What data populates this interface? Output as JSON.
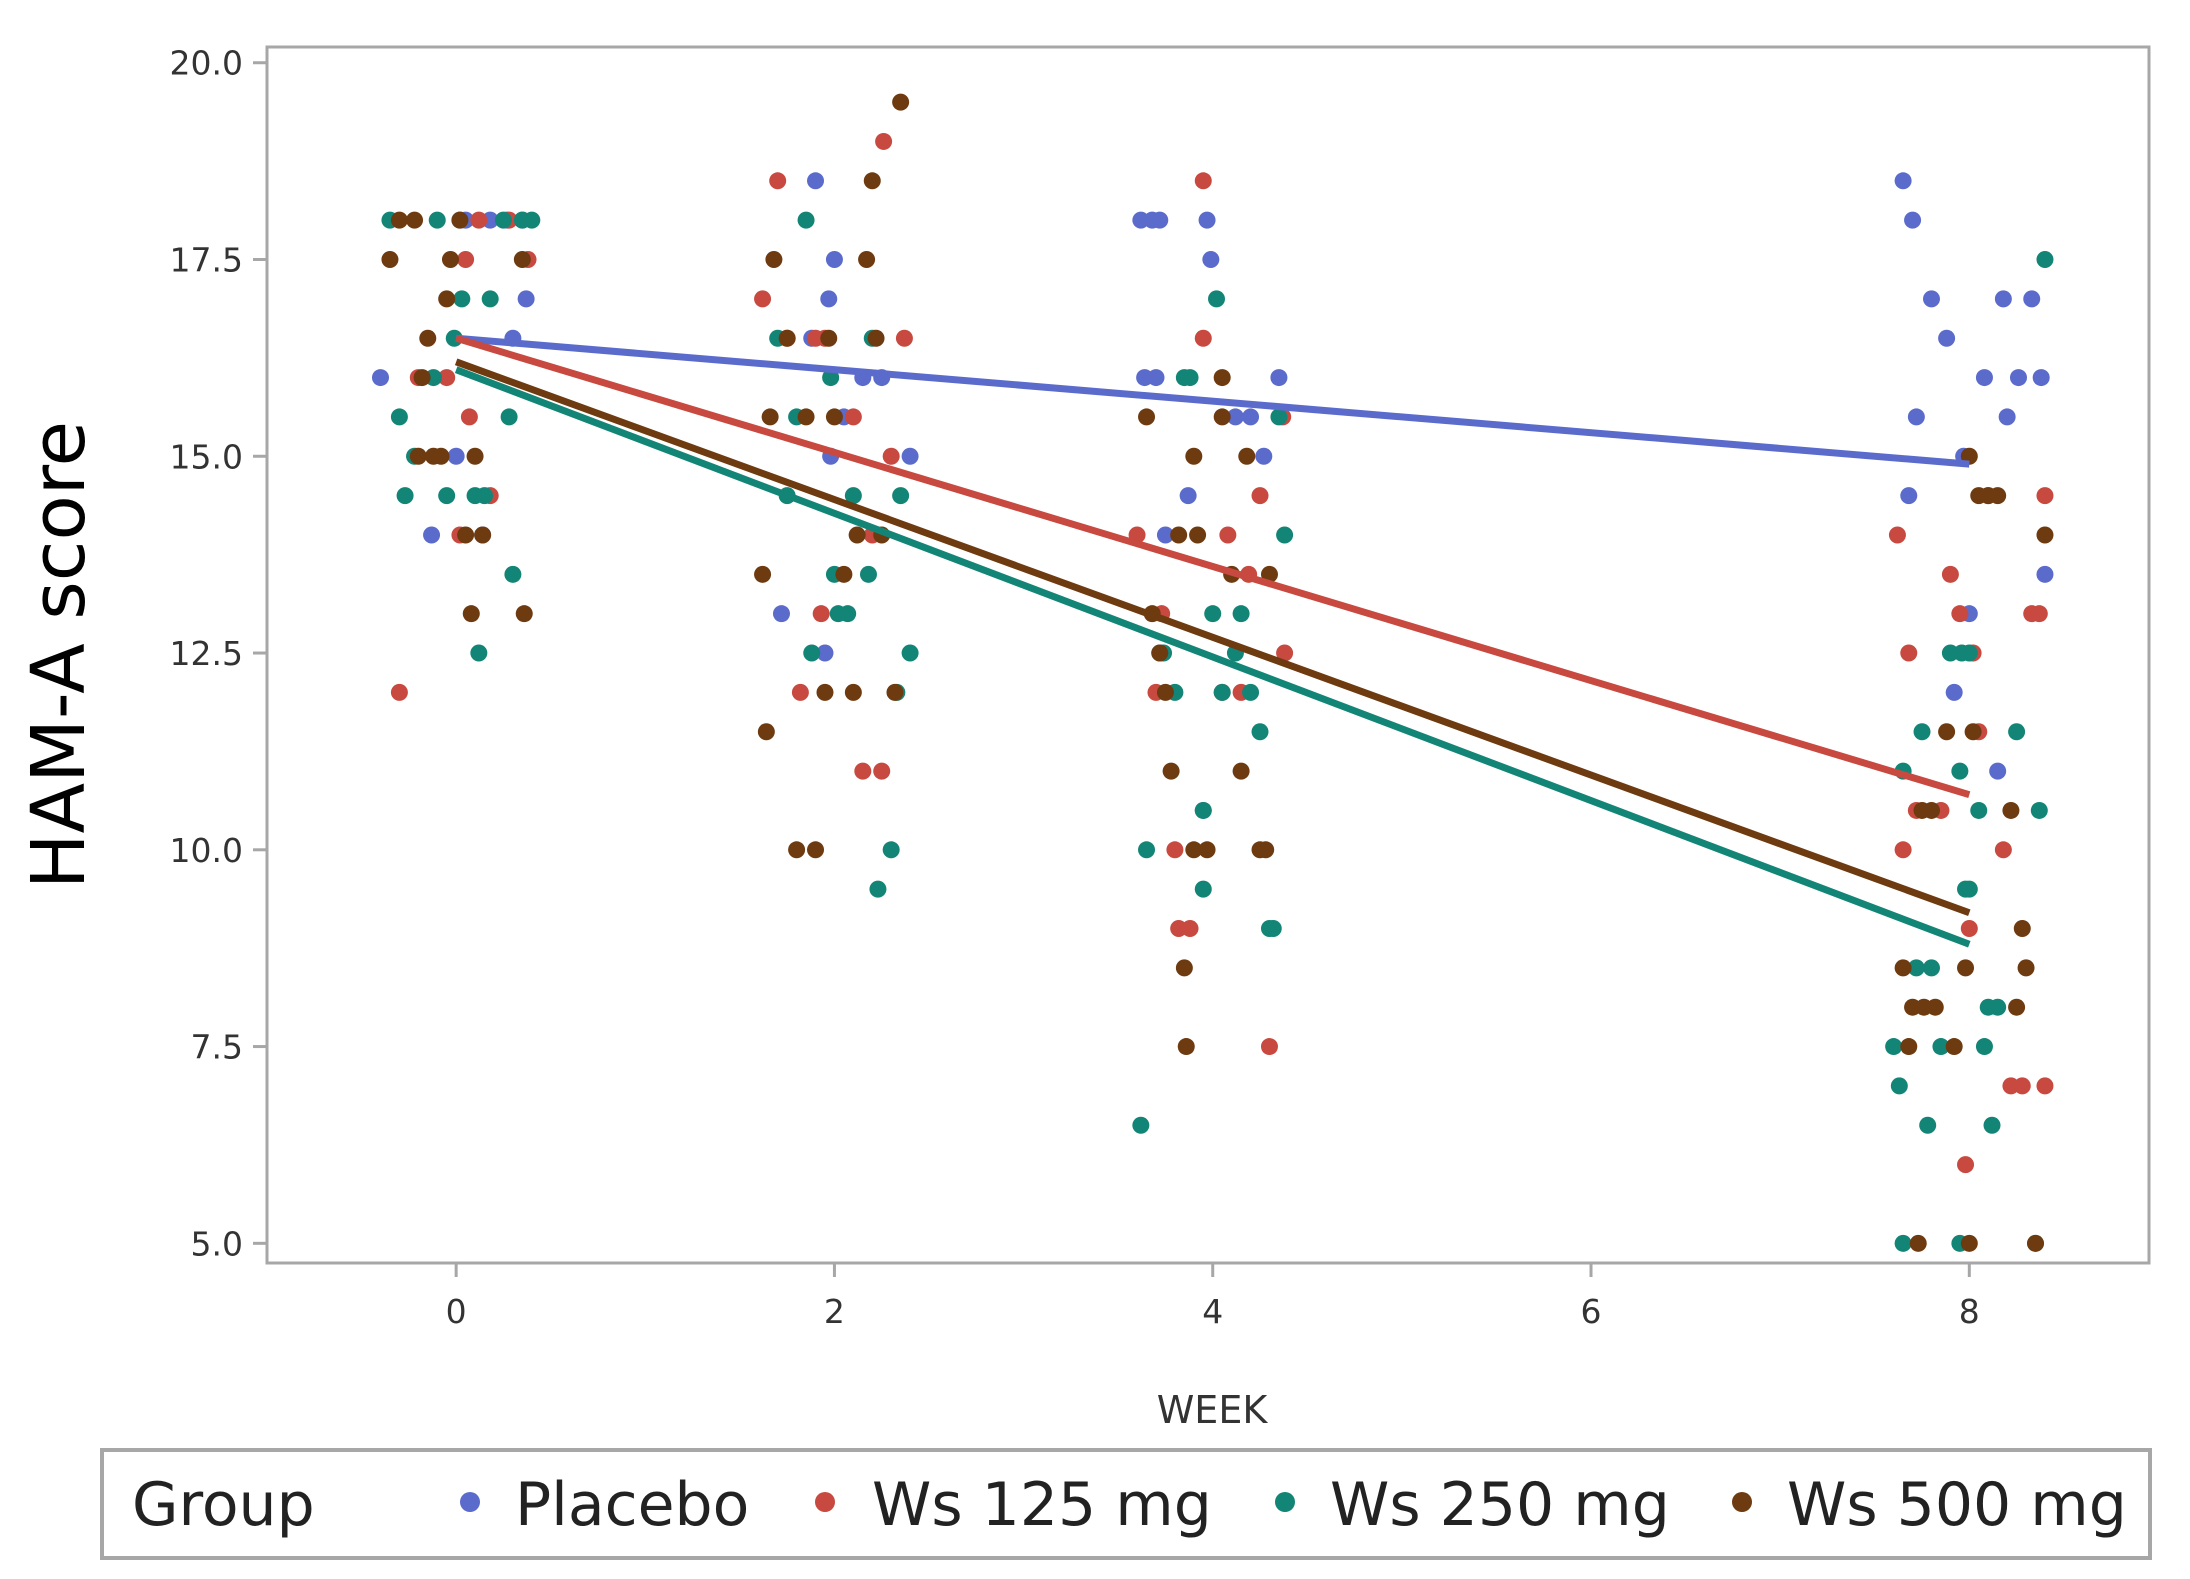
{
  "chart_data": {
    "type": "scatter",
    "xlabel": "WEEK",
    "ylabel": "HAM-A  score",
    "xlim": [
      -1,
      8.95
    ],
    "ylim": [
      4.75,
      20.2
    ],
    "xticks": [
      0,
      2,
      4,
      6,
      8
    ],
    "xtick_labels": [
      "0",
      "2",
      "4",
      "6",
      "8"
    ],
    "yticks": [
      5.0,
      7.5,
      10.0,
      12.5,
      15.0,
      17.5,
      20.0
    ],
    "ytick_labels": [
      "5.0",
      "7.5",
      "10.0",
      "12.5",
      "15.0",
      "17.5",
      "20.0"
    ],
    "grid": false,
    "legend": {
      "title": "Group",
      "placement": "bottom",
      "entries": [
        "Placebo",
        "Ws 125 mg",
        "Ws 250 mg",
        "Ws 500 mg"
      ]
    },
    "series": [
      {
        "name": "Placebo",
        "color": "#5b6bcb",
        "trend": [
          [
            0,
            16.5
          ],
          [
            8,
            14.9
          ]
        ],
        "points": [
          [
            -0.4,
            16.0
          ],
          [
            -0.13,
            14.0
          ],
          [
            0.0,
            15.0
          ],
          [
            0.02,
            18.0
          ],
          [
            0.05,
            18.0
          ],
          [
            0.14,
            14.0
          ],
          [
            0.3,
            16.5
          ],
          [
            0.37,
            17.0
          ],
          [
            0.35,
            18.0
          ],
          [
            0.27,
            18.0
          ],
          [
            0.18,
            18.0
          ],
          [
            1.9,
            18.5
          ],
          [
            1.72,
            13.0
          ],
          [
            1.88,
            16.5
          ],
          [
            1.95,
            12.5
          ],
          [
            1.98,
            15.0
          ],
          [
            1.97,
            17.0
          ],
          [
            2.0,
            17.5
          ],
          [
            2.05,
            15.5
          ],
          [
            2.15,
            16.0
          ],
          [
            2.25,
            16.0
          ],
          [
            2.4,
            15.0
          ],
          [
            3.62,
            18.0
          ],
          [
            3.68,
            18.0
          ],
          [
            3.72,
            18.0
          ],
          [
            3.7,
            16.0
          ],
          [
            3.64,
            16.0
          ],
          [
            3.75,
            14.0
          ],
          [
            3.87,
            14.5
          ],
          [
            3.97,
            18.0
          ],
          [
            3.99,
            17.5
          ],
          [
            3.95,
            10.5
          ],
          [
            4.12,
            15.5
          ],
          [
            4.2,
            15.5
          ],
          [
            4.27,
            15.0
          ],
          [
            4.35,
            16.0
          ],
          [
            7.65,
            18.5
          ],
          [
            7.7,
            18.0
          ],
          [
            7.68,
            14.5
          ],
          [
            7.72,
            15.5
          ],
          [
            7.8,
            17.0
          ],
          [
            7.88,
            16.5
          ],
          [
            7.92,
            12.0
          ],
          [
            7.97,
            15.0
          ],
          [
            8.0,
            13.0
          ],
          [
            8.08,
            16.0
          ],
          [
            8.15,
            11.0
          ],
          [
            8.2,
            15.5
          ],
          [
            8.26,
            16.0
          ],
          [
            8.18,
            17.0
          ],
          [
            8.33,
            17.0
          ],
          [
            8.38,
            16.0
          ],
          [
            8.4,
            13.5
          ]
        ]
      },
      {
        "name": "Ws 125 mg",
        "color": "#c8493f",
        "trend": [
          [
            0,
            16.5
          ],
          [
            8,
            10.7
          ]
        ],
        "points": [
          [
            -0.3,
            12.0
          ],
          [
            -0.2,
            16.0
          ],
          [
            -0.05,
            16.0
          ],
          [
            0.02,
            14.0
          ],
          [
            0.05,
            17.5
          ],
          [
            0.07,
            15.5
          ],
          [
            0.12,
            18.0
          ],
          [
            0.18,
            14.5
          ],
          [
            0.28,
            18.0
          ],
          [
            0.38,
            17.5
          ],
          [
            1.62,
            17.0
          ],
          [
            1.7,
            18.5
          ],
          [
            1.75,
            16.5
          ],
          [
            1.82,
            12.0
          ],
          [
            1.9,
            16.5
          ],
          [
            1.93,
            13.0
          ],
          [
            1.95,
            16.5
          ],
          [
            2.1,
            15.5
          ],
          [
            2.15,
            11.0
          ],
          [
            2.2,
            14.0
          ],
          [
            2.26,
            19.0
          ],
          [
            2.3,
            15.0
          ],
          [
            2.37,
            16.5
          ],
          [
            2.25,
            11.0
          ],
          [
            3.6,
            14.0
          ],
          [
            3.7,
            12.0
          ],
          [
            3.73,
            13.0
          ],
          [
            3.8,
            10.0
          ],
          [
            3.82,
            9.0
          ],
          [
            3.88,
            9.0
          ],
          [
            3.95,
            18.5
          ],
          [
            3.95,
            16.5
          ],
          [
            4.05,
            12.0
          ],
          [
            4.08,
            14.0
          ],
          [
            4.15,
            12.0
          ],
          [
            4.19,
            13.5
          ],
          [
            4.25,
            14.5
          ],
          [
            4.3,
            7.5
          ],
          [
            4.37,
            15.5
          ],
          [
            4.38,
            12.5
          ],
          [
            7.62,
            14.0
          ],
          [
            7.65,
            10.0
          ],
          [
            7.68,
            12.5
          ],
          [
            7.72,
            10.5
          ],
          [
            7.85,
            10.5
          ],
          [
            7.9,
            13.5
          ],
          [
            7.95,
            13.0
          ],
          [
            8.0,
            9.0
          ],
          [
            8.02,
            12.5
          ],
          [
            7.98,
            6.0
          ],
          [
            8.05,
            11.5
          ],
          [
            8.1,
            14.5
          ],
          [
            8.18,
            10.0
          ],
          [
            8.22,
            7.0
          ],
          [
            8.28,
            7.0
          ],
          [
            8.33,
            13.0
          ],
          [
            8.37,
            13.0
          ],
          [
            8.4,
            14.5
          ],
          [
            8.4,
            7.0
          ]
        ]
      },
      {
        "name": "Ws 250 mg",
        "color": "#138576",
        "trend": [
          [
            0,
            16.1
          ],
          [
            8,
            8.8
          ]
        ],
        "points": [
          [
            -0.35,
            18.0
          ],
          [
            -0.3,
            15.5
          ],
          [
            -0.27,
            14.5
          ],
          [
            -0.22,
            15.0
          ],
          [
            -0.12,
            16.0
          ],
          [
            -0.1,
            18.0
          ],
          [
            -0.05,
            14.5
          ],
          [
            -0.01,
            16.5
          ],
          [
            0.03,
            17.0
          ],
          [
            0.1,
            14.5
          ],
          [
            0.12,
            12.5
          ],
          [
            0.15,
            14.5
          ],
          [
            0.18,
            17.0
          ],
          [
            0.25,
            18.0
          ],
          [
            0.28,
            15.5
          ],
          [
            0.3,
            13.5
          ],
          [
            0.35,
            18.0
          ],
          [
            0.4,
            18.0
          ],
          [
            1.7,
            16.5
          ],
          [
            1.75,
            14.5
          ],
          [
            1.8,
            15.5
          ],
          [
            1.85,
            18.0
          ],
          [
            1.88,
            12.5
          ],
          [
            2.0,
            13.5
          ],
          [
            2.02,
            13.0
          ],
          [
            2.07,
            13.0
          ],
          [
            2.1,
            14.5
          ],
          [
            2.18,
            13.5
          ],
          [
            2.23,
            9.5
          ],
          [
            2.3,
            10.0
          ],
          [
            2.35,
            14.5
          ],
          [
            2.33,
            12.0
          ],
          [
            2.4,
            12.5
          ],
          [
            2.2,
            16.5
          ],
          [
            1.98,
            16.0
          ],
          [
            3.62,
            6.5
          ],
          [
            3.65,
            10.0
          ],
          [
            3.72,
            12.5
          ],
          [
            3.74,
            12.5
          ],
          [
            3.8,
            12.0
          ],
          [
            3.85,
            16.0
          ],
          [
            3.88,
            16.0
          ],
          [
            3.95,
            9.5
          ],
          [
            3.95,
            10.5
          ],
          [
            4.0,
            13.0
          ],
          [
            4.05,
            12.0
          ],
          [
            4.12,
            12.5
          ],
          [
            4.15,
            13.0
          ],
          [
            4.2,
            12.0
          ],
          [
            4.25,
            11.5
          ],
          [
            4.3,
            9.0
          ],
          [
            4.32,
            9.0
          ],
          [
            4.38,
            14.0
          ],
          [
            4.35,
            15.5
          ],
          [
            4.02,
            17.0
          ],
          [
            7.6,
            7.5
          ],
          [
            7.63,
            7.0
          ],
          [
            7.65,
            11.0
          ],
          [
            7.72,
            8.5
          ],
          [
            7.75,
            11.5
          ],
          [
            7.78,
            6.5
          ],
          [
            7.8,
            8.5
          ],
          [
            7.85,
            7.5
          ],
          [
            7.9,
            12.5
          ],
          [
            7.95,
            11.0
          ],
          [
            7.96,
            12.5
          ],
          [
            7.98,
            9.5
          ],
          [
            8.0,
            12.5
          ],
          [
            8.05,
            10.5
          ],
          [
            8.08,
            7.5
          ],
          [
            8.1,
            8.0
          ],
          [
            8.12,
            6.5
          ],
          [
            8.15,
            8.0
          ],
          [
            8.25,
            11.5
          ],
          [
            8.35,
            5.0
          ],
          [
            8.37,
            10.5
          ],
          [
            8.4,
            17.5
          ],
          [
            7.65,
            5.0
          ],
          [
            7.95,
            5.0
          ],
          [
            8.0,
            9.5
          ]
        ]
      },
      {
        "name": "Ws 500 mg",
        "color": "#6e3a10",
        "trend": [
          [
            0,
            16.2
          ],
          [
            8,
            9.2
          ]
        ],
        "points": [
          [
            -0.35,
            17.5
          ],
          [
            -0.3,
            18.0
          ],
          [
            -0.22,
            18.0
          ],
          [
            -0.18,
            16.0
          ],
          [
            -0.15,
            16.5
          ],
          [
            -0.2,
            15.0
          ],
          [
            -0.12,
            15.0
          ],
          [
            -0.05,
            17.0
          ],
          [
            -0.08,
            15.0
          ],
          [
            -0.03,
            17.5
          ],
          [
            0.05,
            14.0
          ],
          [
            0.08,
            13.0
          ],
          [
            0.1,
            15.0
          ],
          [
            0.14,
            14.0
          ],
          [
            0.36,
            13.0
          ],
          [
            0.35,
            17.5
          ],
          [
            0.02,
            18.0
          ],
          [
            1.62,
            13.5
          ],
          [
            1.64,
            11.5
          ],
          [
            1.66,
            15.5
          ],
          [
            1.68,
            17.5
          ],
          [
            1.75,
            16.5
          ],
          [
            1.8,
            10.0
          ],
          [
            1.85,
            15.5
          ],
          [
            1.9,
            10.0
          ],
          [
            1.95,
            12.0
          ],
          [
            1.97,
            16.5
          ],
          [
            2.0,
            15.5
          ],
          [
            2.05,
            13.5
          ],
          [
            2.1,
            12.0
          ],
          [
            2.12,
            14.0
          ],
          [
            2.17,
            17.5
          ],
          [
            2.2,
            18.5
          ],
          [
            2.25,
            14.0
          ],
          [
            2.32,
            12.0
          ],
          [
            2.35,
            19.5
          ],
          [
            2.22,
            16.5
          ],
          [
            3.65,
            15.5
          ],
          [
            3.68,
            13.0
          ],
          [
            3.72,
            12.5
          ],
          [
            3.75,
            12.0
          ],
          [
            3.78,
            11.0
          ],
          [
            3.82,
            14.0
          ],
          [
            3.85,
            8.5
          ],
          [
            3.86,
            7.5
          ],
          [
            3.9,
            10.0
          ],
          [
            3.92,
            14.0
          ],
          [
            3.97,
            10.0
          ],
          [
            4.05,
            15.5
          ],
          [
            4.05,
            16.0
          ],
          [
            4.1,
            13.5
          ],
          [
            4.15,
            11.0
          ],
          [
            4.18,
            15.0
          ],
          [
            4.25,
            10.0
          ],
          [
            4.28,
            10.0
          ],
          [
            4.3,
            13.5
          ],
          [
            3.9,
            15.0
          ],
          [
            7.65,
            8.5
          ],
          [
            7.68,
            7.5
          ],
          [
            7.7,
            8.0
          ],
          [
            7.73,
            5.0
          ],
          [
            7.76,
            8.0
          ],
          [
            7.8,
            10.5
          ],
          [
            7.82,
            8.0
          ],
          [
            7.88,
            11.5
          ],
          [
            7.92,
            7.5
          ],
          [
            7.98,
            8.5
          ],
          [
            8.0,
            15.0
          ],
          [
            8.02,
            11.5
          ],
          [
            8.05,
            14.5
          ],
          [
            8.1,
            14.5
          ],
          [
            8.15,
            14.5
          ],
          [
            8.22,
            10.5
          ],
          [
            8.25,
            8.0
          ],
          [
            8.28,
            9.0
          ],
          [
            8.3,
            8.5
          ],
          [
            8.35,
            5.0
          ],
          [
            8.4,
            14.0
          ],
          [
            7.75,
            10.5
          ],
          [
            8.0,
            5.0
          ]
        ]
      }
    ]
  }
}
